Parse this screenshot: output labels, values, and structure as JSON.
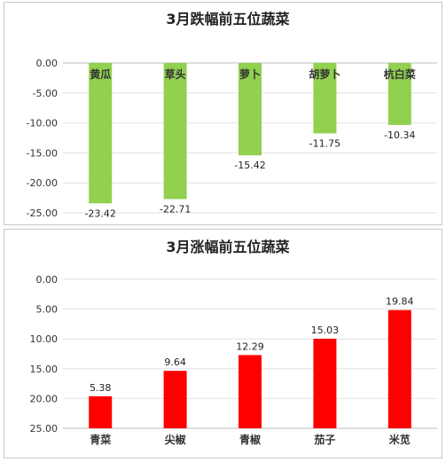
{
  "chart_data": [
    {
      "type": "bar",
      "title": "3月跌幅前五位蔬菜",
      "categories": [
        "黄瓜",
        "草头",
        "萝卜",
        "胡萝卜",
        "杭白菜"
      ],
      "values": [
        -23.42,
        -22.71,
        -15.42,
        -11.75,
        -10.34
      ],
      "value_labels": [
        "-23.42",
        "-22.71",
        "-15.42",
        "-11.75",
        "-10.34"
      ],
      "yticks": [
        "0.00",
        "-5.00",
        "-10.00",
        "-15.00",
        "-20.00",
        "-25.00"
      ],
      "ylim": [
        -25,
        0
      ],
      "category_label_position": "top",
      "grid": true,
      "color": "#92d050"
    },
    {
      "type": "bar",
      "title": "3月涨幅前五位蔬菜",
      "categories": [
        "青菜",
        "尖椒",
        "青椒",
        "茄子",
        "米苋"
      ],
      "values": [
        5.38,
        9.64,
        12.29,
        15.03,
        19.84
      ],
      "value_labels": [
        "5.38",
        "9.64",
        "12.29",
        "15.03",
        "19.84"
      ],
      "yticks": [
        "0.00",
        "5.00",
        "10.00",
        "15.00",
        "20.00",
        "25.00"
      ],
      "ylim": [
        0,
        25
      ],
      "category_label_position": "bottom",
      "grid": true,
      "color": "#ff0000"
    }
  ]
}
